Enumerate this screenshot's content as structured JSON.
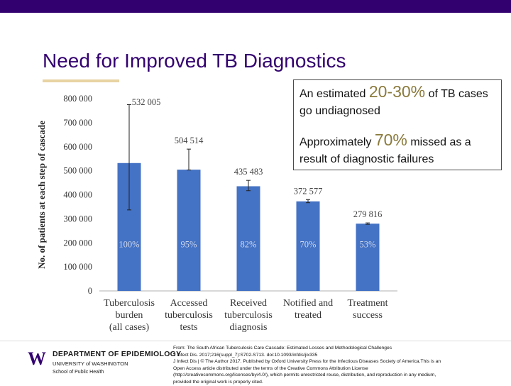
{
  "slide": {
    "title": "Need for Improved TB Diagnostics",
    "colors": {
      "topbar": "#33006f",
      "title": "#33006f",
      "accent_rule": "#e8d3a2",
      "bar": "#4472c4",
      "highlight_number": "#8a7a3c"
    }
  },
  "callout": {
    "line1_pre": "An estimated",
    "line1_big": "20-30%",
    "line1_post": "of TB cases go undiagnosed",
    "line2_pre": "Approximately",
    "line2_big": "70%",
    "line2_post": "missed as a result of diagnostic failures"
  },
  "chart_data": {
    "type": "bar",
    "ylabel": "No. of patients at each step of cascade",
    "ylim": [
      0,
      800000
    ],
    "yticks": [
      0,
      100000,
      200000,
      300000,
      400000,
      500000,
      600000,
      700000,
      800000
    ],
    "ytick_labels": [
      "0",
      "100 000",
      "200 000",
      "300 000",
      "400 000",
      "500 000",
      "600 000",
      "700 000",
      "800 000"
    ],
    "categories": [
      [
        "Tuberculosis",
        "burden",
        "(all cases)"
      ],
      [
        "Accessed",
        "tuberculosis",
        "tests"
      ],
      [
        "Received",
        "tuberculosis",
        "diagnosis"
      ],
      [
        "Notified and",
        "treated"
      ],
      [
        "Treatment",
        "success"
      ]
    ],
    "values": [
      532005,
      504514,
      435483,
      372577,
      279816
    ],
    "value_labels": [
      "532 005",
      "504 514",
      "435 483",
      "372 577",
      "279 816"
    ],
    "percent_labels": [
      "100%",
      "95%",
      "82%",
      "70%",
      "53%"
    ],
    "error_low": [
      337000,
      503000,
      417000,
      367000,
      277000
    ],
    "error_high": [
      775000,
      590000,
      460000,
      380000,
      283000
    ]
  },
  "footer": {
    "logo_letter": "W",
    "department": "DEPARTMENT OF EPIDEMIOLOGY",
    "university": "UNIVERSITY of WASHINGTON",
    "school": "School of Public Health",
    "source_lines": [
      "From: The South African Tuberculosis Care Cascade: Estimated Losses and Methodological Challenges",
      "J Infect Dis. 2017;216(suppl_7):S702-S713. doi:10.1093/infdis/jix335",
      "J Infect Dis | © The Author 2017. Published by Oxford University Press for the Infectious Diseases Society of America.This is an",
      "Open Access article distributed under the terms of the Creative Commons Attribution License",
      "(http://creativecommons.org/licenses/by/4.0/), which permits unrestricted reuse, distribution, and reproduction in any medium,",
      "provided the original work is properly cited."
    ]
  }
}
